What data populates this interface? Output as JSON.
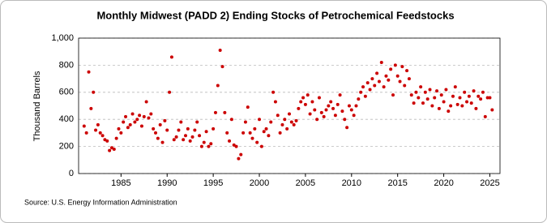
{
  "chart_data": {
    "type": "scatter",
    "title": "Monthly Midwest (PADD 2) Ending Stocks of Petrochemical Feedstocks",
    "y_label": "Thousand Barrels",
    "source": "Source: U.S. Energy Information Administration",
    "color": "#cc0000",
    "grid": true,
    "xlim": [
      1980.4,
      2026.1
    ],
    "ylim": [
      0,
      1000
    ],
    "xticks": [
      1985,
      1990,
      1995,
      2000,
      2005,
      2010,
      2015,
      2020,
      2025
    ],
    "yticks": [
      0,
      200,
      400,
      600,
      800,
      {
        "value": 1000,
        "label": "1,000"
      }
    ],
    "x": [
      1981,
      1981.25,
      1981.5,
      1981.75,
      1982,
      1982.25,
      1982.5,
      1982.75,
      1983,
      1983.25,
      1983.5,
      1983.75,
      1984,
      1984.25,
      1984.5,
      1984.75,
      1985,
      1985.25,
      1985.5,
      1985.75,
      1986,
      1986.25,
      1986.5,
      1986.75,
      1987,
      1987.25,
      1987.5,
      1987.75,
      1988,
      1988.25,
      1988.5,
      1988.75,
      1989,
      1989.25,
      1989.5,
      1989.75,
      1990,
      1990.25,
      1990.5,
      1990.75,
      1991,
      1991.25,
      1991.5,
      1991.75,
      1992,
      1992.25,
      1992.5,
      1992.75,
      1993,
      1993.25,
      1993.5,
      1993.75,
      1994,
      1994.25,
      1994.5,
      1994.75,
      1995,
      1995.25,
      1995.5,
      1995.75,
      1996,
      1996.25,
      1996.5,
      1996.75,
      1997,
      1997.25,
      1997.5,
      1997.75,
      1998,
      1998.25,
      1998.5,
      1998.75,
      1999,
      1999.25,
      1999.5,
      1999.75,
      2000,
      2000.25,
      2000.5,
      2000.75,
      2001,
      2001.25,
      2001.5,
      2001.75,
      2002,
      2002.25,
      2002.5,
      2002.75,
      2003,
      2003.25,
      2003.5,
      2003.75,
      2004,
      2004.25,
      2004.5,
      2004.75,
      2005,
      2005.25,
      2005.5,
      2005.75,
      2006,
      2006.25,
      2006.5,
      2006.75,
      2007,
      2007.25,
      2007.5,
      2007.75,
      2008,
      2008.25,
      2008.5,
      2008.75,
      2009,
      2009.25,
      2009.5,
      2009.75,
      2010,
      2010.25,
      2010.5,
      2010.75,
      2011,
      2011.25,
      2011.5,
      2011.75,
      2012,
      2012.25,
      2012.5,
      2012.75,
      2013,
      2013.25,
      2013.5,
      2013.75,
      2014,
      2014.25,
      2014.5,
      2014.75,
      2015,
      2015.25,
      2015.5,
      2015.75,
      2016,
      2016.25,
      2016.5,
      2016.75,
      2017,
      2017.25,
      2017.5,
      2017.75,
      2018,
      2018.25,
      2018.5,
      2018.75,
      2019,
      2019.25,
      2019.5,
      2019.75,
      2020,
      2020.25,
      2020.5,
      2020.75,
      2021,
      2021.25,
      2021.5,
      2021.75,
      2022,
      2022.25,
      2022.5,
      2022.75,
      2023,
      2023.25,
      2023.5,
      2023.75,
      2024,
      2024.25,
      2024.5,
      2024.75,
      2025,
      2025.25
    ],
    "values": [
      350,
      300,
      750,
      480,
      600,
      320,
      360,
      300,
      280,
      250,
      240,
      170,
      190,
      180,
      260,
      330,
      300,
      380,
      420,
      340,
      360,
      440,
      380,
      400,
      430,
      350,
      420,
      530,
      410,
      440,
      330,
      300,
      260,
      360,
      230,
      390,
      320,
      600,
      860,
      250,
      270,
      320,
      380,
      250,
      280,
      330,
      240,
      270,
      320,
      380,
      280,
      200,
      230,
      310,
      200,
      220,
      330,
      450,
      650,
      910,
      790,
      450,
      300,
      240,
      400,
      210,
      200,
      110,
      140,
      300,
      380,
      490,
      300,
      260,
      330,
      230,
      400,
      200,
      310,
      330,
      280,
      380,
      600,
      530,
      430,
      300,
      360,
      400,
      330,
      440,
      380,
      360,
      390,
      480,
      530,
      560,
      510,
      580,
      440,
      530,
      470,
      400,
      560,
      450,
      420,
      470,
      500,
      530,
      480,
      430,
      510,
      580,
      460,
      400,
      340,
      500,
      470,
      430,
      500,
      550,
      600,
      640,
      570,
      670,
      620,
      700,
      650,
      740,
      680,
      820,
      640,
      720,
      690,
      770,
      580,
      800,
      720,
      680,
      790,
      650,
      760,
      700,
      580,
      520,
      600,
      560,
      640,
      520,
      600,
      550,
      620,
      500,
      560,
      610,
      480,
      580,
      530,
      620,
      460,
      500,
      570,
      640,
      510,
      560,
      500,
      600,
      530,
      570,
      520,
      610,
      480,
      570,
      550,
      600,
      420,
      560,
      560,
      470
    ]
  }
}
